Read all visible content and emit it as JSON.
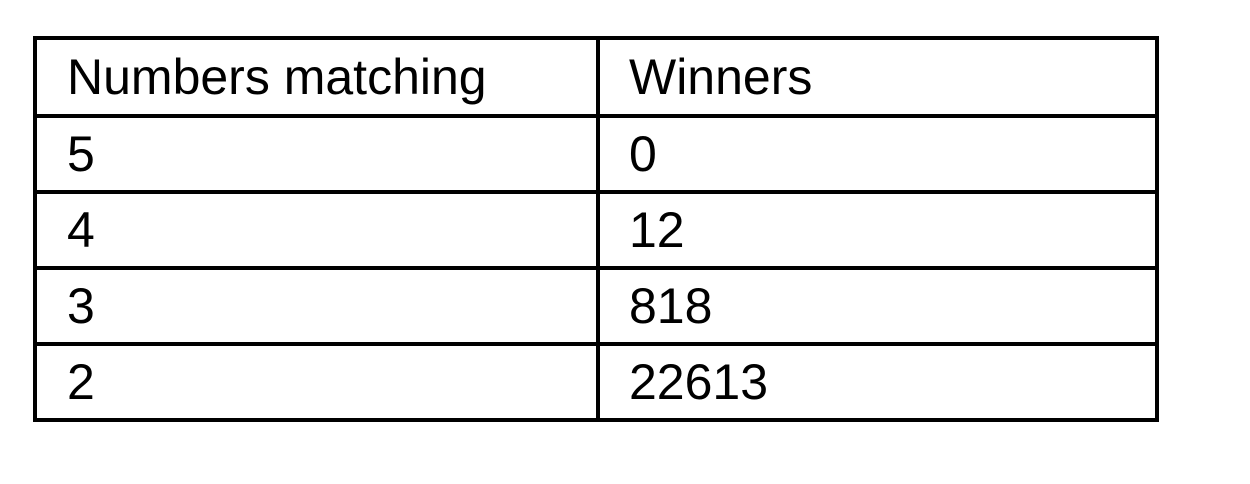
{
  "table": {
    "headers": [
      "Numbers matching",
      "Winners"
    ],
    "rows": [
      [
        "5",
        "0"
      ],
      [
        "4",
        "12"
      ],
      [
        "3",
        "818"
      ],
      [
        "2",
        "22613"
      ]
    ]
  }
}
